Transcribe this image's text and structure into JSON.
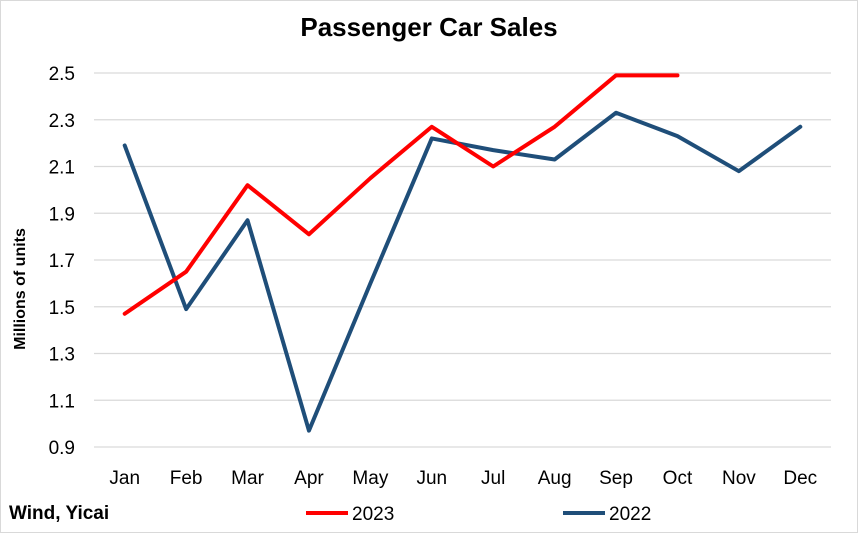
{
  "chart_data": {
    "type": "line",
    "title": "Passenger Car Sales",
    "ylabel": "Millions of units",
    "xlabel": "",
    "ylim": [
      0.9,
      2.5
    ],
    "yticks": [
      0.9,
      1.1,
      1.3,
      1.5,
      1.7,
      1.9,
      2.1,
      2.3,
      2.5
    ],
    "grid": true,
    "legend_position": "bottom",
    "categories": [
      "Jan",
      "Feb",
      "Mar",
      "Apr",
      "May",
      "Jun",
      "Jul",
      "Aug",
      "Sep",
      "Oct",
      "Nov",
      "Dec"
    ],
    "series": [
      {
        "name": "2023",
        "color": "#ff0000",
        "values": [
          1.47,
          1.65,
          2.02,
          1.81,
          2.05,
          2.27,
          2.1,
          2.27,
          2.49,
          2.49,
          null,
          null
        ]
      },
      {
        "name": "2022",
        "color": "#1f4e79",
        "values": [
          2.19,
          1.49,
          1.87,
          0.97,
          1.6,
          2.22,
          2.17,
          2.13,
          2.33,
          2.23,
          2.08,
          2.27
        ]
      }
    ],
    "source_note": "Wind, Yicai"
  }
}
